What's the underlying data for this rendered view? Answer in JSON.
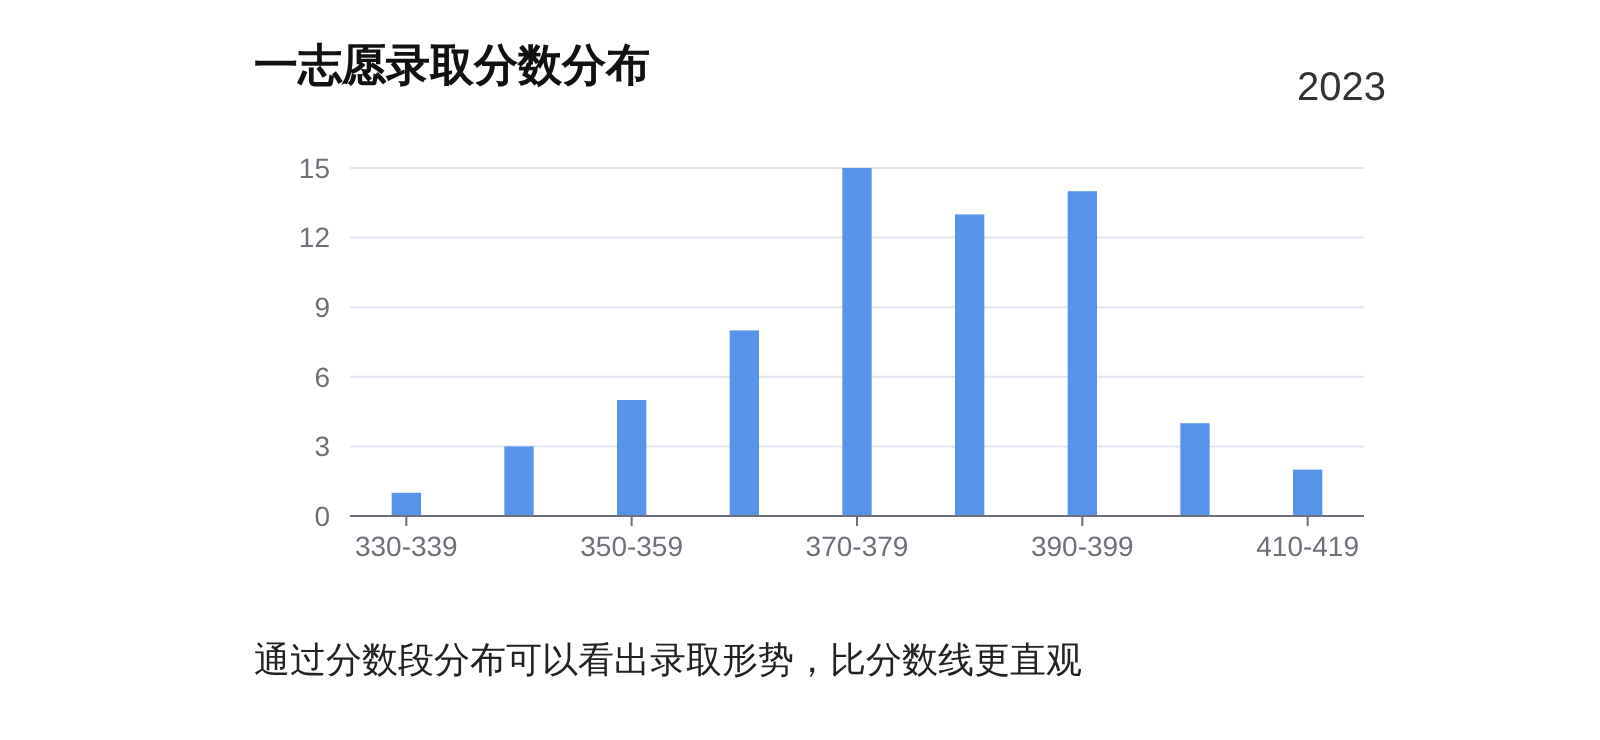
{
  "chart_data": {
    "type": "bar",
    "title": "一志愿录取分数分布",
    "subtitle": "2023",
    "categories": [
      "330-339",
      null,
      "350-359",
      null,
      "370-379",
      null,
      "390-399",
      null,
      "410-419"
    ],
    "values": [
      1,
      3,
      5,
      8,
      15,
      13,
      14,
      4,
      2
    ],
    "color": "#5793e8",
    "ylim": [
      0,
      15
    ],
    "yticks": [
      0,
      3,
      6,
      9,
      12,
      15
    ],
    "grid": "y",
    "annotations": [
      "通过分数段分布可以看出录取形势，比分数线更直观"
    ]
  }
}
